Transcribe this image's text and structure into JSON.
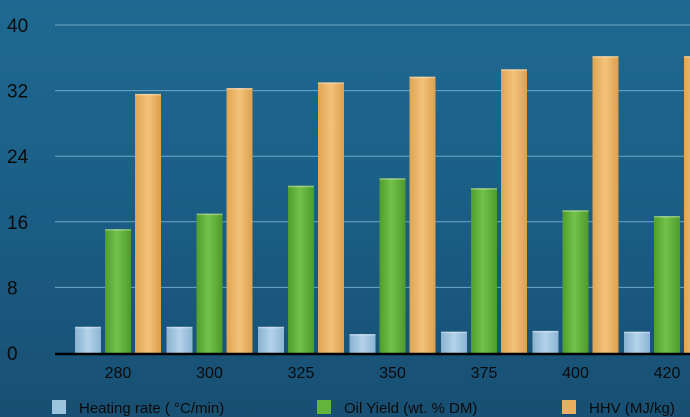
{
  "chart_data": {
    "type": "bar",
    "categories": [
      "280",
      "300",
      "325",
      "350",
      "375",
      "400",
      "420"
    ],
    "series": [
      {
        "name": "Heating rate ( °C/min)",
        "color": "#9cc4df",
        "values": [
          3.2,
          3.2,
          3.2,
          2.3,
          2.6,
          2.7,
          2.6
        ]
      },
      {
        "name": "Oil Yield (wt. % DM)",
        "color": "#62b43b",
        "values": [
          15.1,
          17.0,
          20.4,
          21.3,
          20.1,
          17.4,
          16.7
        ]
      },
      {
        "name": "HHV (MJ/kg)",
        "color": "#eab060",
        "values": [
          31.6,
          32.3,
          33.0,
          33.7,
          34.6,
          36.2,
          36.2
        ]
      }
    ],
    "yticks": [
      0,
      8,
      16,
      24,
      32,
      40
    ],
    "ylim": [
      0,
      40
    ],
    "grid": true,
    "legend": "bottom"
  }
}
